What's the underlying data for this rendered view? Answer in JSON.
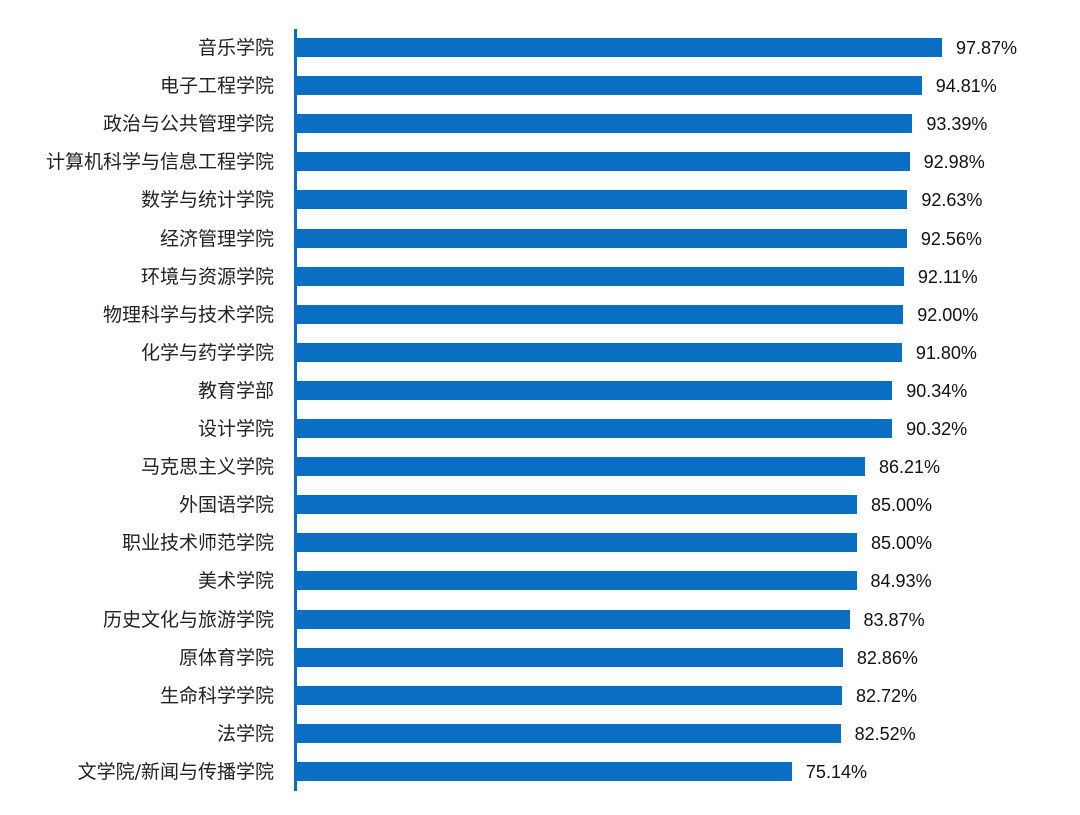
{
  "chart_data": {
    "type": "bar",
    "orientation": "horizontal",
    "title": "",
    "xlabel": "",
    "ylabel": "",
    "grid": false,
    "legend": null,
    "bar_color": "#0a6fc2",
    "value_format": "percent_2dp",
    "xlim": [
      0,
      100
    ],
    "categories": [
      "音乐学院",
      "电子工程学院",
      "政治与公共管理学院",
      "计算机科学与信息工程学院",
      "数学与统计学院",
      "经济管理学院",
      "环境与资源学院",
      "物理科学与技术学院",
      "化学与药学学院",
      "教育学部",
      "设计学院",
      "马克思主义学院",
      "外国语学院",
      "职业技术师范学院",
      "美术学院",
      "历史文化与旅游学院",
      "原体育学院",
      "生命科学学院",
      "法学院",
      "文学院/新闻与传播学院"
    ],
    "values": [
      97.87,
      94.81,
      93.39,
      92.98,
      92.63,
      92.56,
      92.11,
      92.0,
      91.8,
      90.34,
      90.32,
      86.21,
      85.0,
      85.0,
      84.93,
      83.87,
      82.86,
      82.72,
      82.52,
      75.14
    ],
    "value_labels": [
      "97.87%",
      "94.81%",
      "93.39%",
      "92.98%",
      "92.63%",
      "92.56%",
      "92.11%",
      "92.00%",
      "91.80%",
      "90.34%",
      "90.32%",
      "86.21%",
      "85.00%",
      "85.00%",
      "84.93%",
      "83.87%",
      "82.86%",
      "82.72%",
      "82.52%",
      "75.14%"
    ]
  }
}
